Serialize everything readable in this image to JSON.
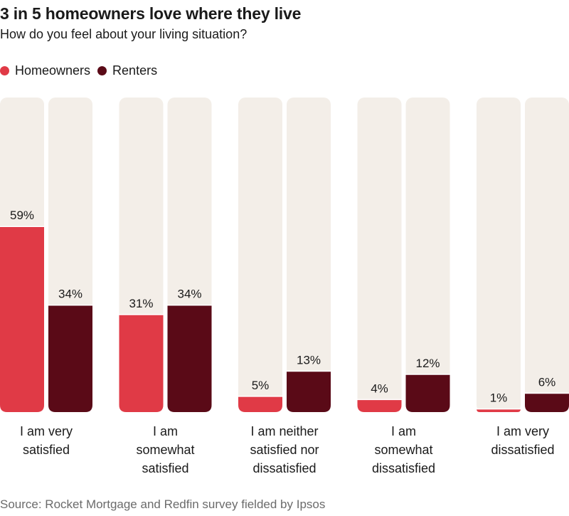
{
  "title": "3 in 5 homeowners love where they live",
  "subtitle": "How do you feel about your living situation?",
  "source": "Source: Rocket Mortgage and Redfin survey fielded by Ipsos",
  "colors": {
    "homeowners": "#e03a46",
    "renters": "#5a0a17",
    "track": "#f3eee8"
  },
  "legend": [
    {
      "label": "Homeowners",
      "color": "#e03a46"
    },
    {
      "label": "Renters",
      "color": "#5a0a17"
    }
  ],
  "chart_data": {
    "type": "bar",
    "categories": [
      [
        "I am very",
        "satisfied"
      ],
      [
        "I am",
        "somewhat",
        "satisfied"
      ],
      [
        "I am neither",
        "satisfied nor",
        "dissatisfied"
      ],
      [
        "I am",
        "somewhat",
        "dissatisfied"
      ],
      [
        "I am very",
        "dissatisfied"
      ]
    ],
    "series": [
      {
        "name": "Homeowners",
        "values": [
          59,
          31,
          5,
          4,
          1
        ],
        "labels": [
          "59%",
          "31%",
          "5%",
          "4%",
          "1%"
        ]
      },
      {
        "name": "Renters",
        "values": [
          34,
          34,
          13,
          12,
          6
        ],
        "labels": [
          "34%",
          "34%",
          "13%",
          "12%",
          "6%"
        ]
      }
    ],
    "ylim": [
      0,
      100
    ],
    "grid": false,
    "legend_position": "top-left"
  }
}
